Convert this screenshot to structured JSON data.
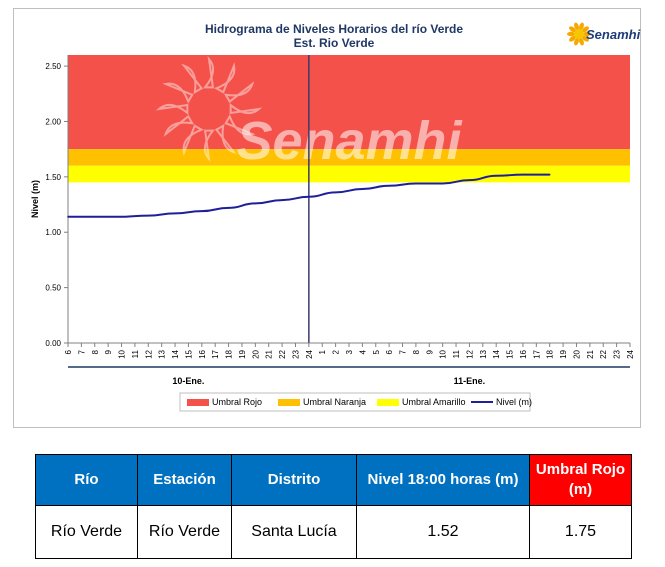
{
  "chart_data": {
    "type": "line",
    "title": "Hidrograma de Niveles Horarios del río Verde",
    "subtitle": "Est. Rio Verde",
    "logo_text": "Senamhi",
    "watermark_text": "Senamhi",
    "ylabel": "Nivel (m)",
    "ylim": [
      0,
      2.6
    ],
    "yticks": [
      "0.00",
      "0.50",
      "1.00",
      "1.50",
      "2.00",
      "2.50"
    ],
    "x_tick_labels": [
      "6",
      "7",
      "8",
      "9",
      "10",
      "11",
      "12",
      "13",
      "14",
      "15",
      "16",
      "17",
      "18",
      "19",
      "20",
      "21",
      "22",
      "23",
      "24",
      "1",
      "2",
      "3",
      "4",
      "5",
      "6",
      "7",
      "8",
      "9",
      "10",
      "11",
      "12",
      "13",
      "14",
      "15",
      "16",
      "17",
      "18",
      "19",
      "20",
      "21",
      "22",
      "23",
      "24"
    ],
    "day_labels": [
      "10-Ene.",
      "11-Ene."
    ],
    "thresholds": [
      {
        "name": "Umbral Rojo",
        "from": 1.75,
        "to": 2.6,
        "color": "#f4514a"
      },
      {
        "name": "Umbral Naranja",
        "from": 1.6,
        "to": 1.75,
        "color": "#ffc000"
      },
      {
        "name": "Umbral Amarillo",
        "from": 1.45,
        "to": 1.6,
        "color": "#ffff00"
      }
    ],
    "series": [
      {
        "name": "Nivel (m)",
        "color": "#1f1f99",
        "x": [
          "10-Ene 6",
          "10-Ene 8",
          "10-Ene 10",
          "10-Ene 12",
          "10-Ene 14",
          "10-Ene 16",
          "10-Ene 18",
          "10-Ene 20",
          "10-Ene 22",
          "10-Ene 24",
          "11-Ene 2",
          "11-Ene 4",
          "11-Ene 6",
          "11-Ene 8",
          "11-Ene 10",
          "11-Ene 12",
          "11-Ene 14",
          "11-Ene 16",
          "11-Ene 18"
        ],
        "values": [
          1.14,
          1.14,
          1.14,
          1.15,
          1.17,
          1.19,
          1.22,
          1.26,
          1.29,
          1.32,
          1.36,
          1.39,
          1.42,
          1.44,
          1.44,
          1.47,
          1.51,
          1.52,
          1.52
        ]
      }
    ],
    "legend": [
      "Umbral Rojo",
      "Umbral Naranja",
      "Umbral Amarillo",
      "Nivel (m)"
    ],
    "legend_position": "bottom",
    "grid": false
  },
  "table": {
    "headers": [
      "Río",
      "Estación",
      "Distrito",
      "Nivel 18:00 horas (m)",
      "Umbral Rojo (m)"
    ],
    "rows": [
      [
        "Río Verde",
        "Río Verde",
        "Santa Lucía",
        "1.52",
        "1.75"
      ]
    ]
  }
}
